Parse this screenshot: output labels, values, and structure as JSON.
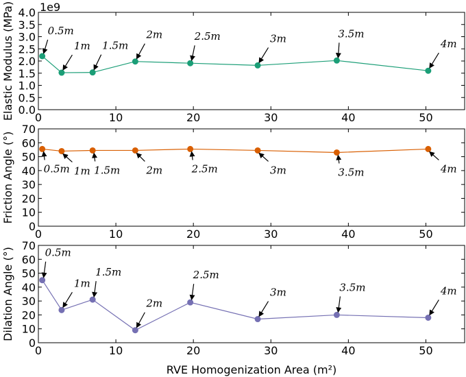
{
  "chart_data": [
    {
      "type": "line",
      "ylabel": "Elastic Modulus (MPa)",
      "y_offset_text": "1e9",
      "color": "#1b9e77",
      "xlim": [
        0,
        55
      ],
      "ylim": [
        0,
        4.0
      ],
      "xticks": [
        "0",
        "10",
        "20",
        "30",
        "40",
        "50"
      ],
      "yticks": [
        "0.0",
        "0.5",
        "1.0",
        "1.5",
        "2.0",
        "2.5",
        "3.0",
        "3.5",
        "4.0"
      ],
      "x": [
        0.5,
        3,
        7,
        12.5,
        19.6,
        28.3,
        38.5,
        50.3
      ],
      "y": [
        2.2,
        1.52,
        1.53,
        1.98,
        1.91,
        1.82,
        2.02,
        1.6
      ],
      "annotations": [
        "0.5m",
        "1m",
        "1.5m",
        "2m",
        "2.5m",
        "3m",
        "3.5m",
        "4m"
      ]
    },
    {
      "type": "line",
      "ylabel": "Friction Angle (°)",
      "color": "#d95f02",
      "xlim": [
        0,
        55
      ],
      "ylim": [
        0,
        70
      ],
      "xticks": [
        "0",
        "10",
        "20",
        "30",
        "40",
        "50"
      ],
      "yticks": [
        "0",
        "10",
        "20",
        "30",
        "40",
        "50",
        "60",
        "70"
      ],
      "x": [
        0.5,
        3,
        7,
        12.5,
        19.6,
        28.3,
        38.5,
        50.3
      ],
      "y": [
        55.5,
        54,
        54.5,
        54.5,
        55.5,
        54.5,
        53,
        55.5
      ],
      "annotations": [
        "0.5m",
        "1m",
        "1.5m",
        "2m",
        "2.5m",
        "3m",
        "3.5m",
        "4m"
      ]
    },
    {
      "type": "line",
      "ylabel": "Dilation Angle (°)",
      "xlabel": "RVE Homogenization Area (m²)",
      "color": "#7570b3",
      "xlim": [
        0,
        55
      ],
      "ylim": [
        0,
        70
      ],
      "xticks": [
        "0",
        "10",
        "20",
        "30",
        "40",
        "50"
      ],
      "yticks": [
        "0",
        "10",
        "20",
        "30",
        "40",
        "50",
        "60",
        "70"
      ],
      "x": [
        0.5,
        3,
        7,
        12.5,
        19.6,
        28.3,
        38.5,
        50.3
      ],
      "y": [
        45,
        23.5,
        31,
        9,
        29,
        17,
        20,
        18
      ],
      "annotations": [
        "0.5m",
        "1m",
        "1.5m",
        "2m",
        "2.5m",
        "3m",
        "3.5m",
        "4m"
      ]
    }
  ]
}
